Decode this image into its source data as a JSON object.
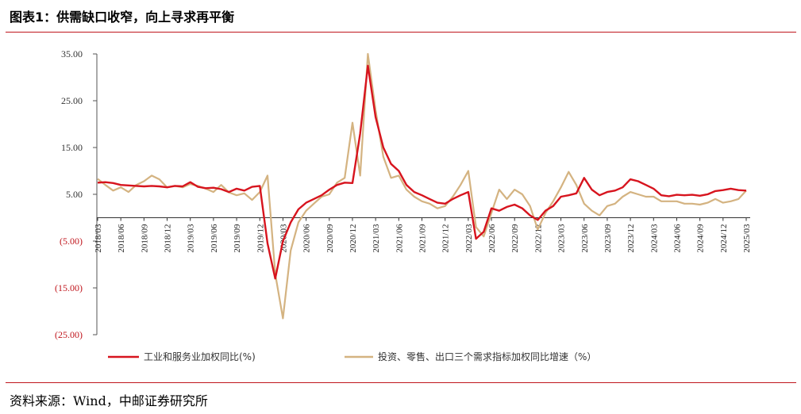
{
  "header": {
    "title": "图表1：供需缺口收窄，向上寻求再平衡"
  },
  "footer": {
    "source": "资料来源：Wind，中邮证券研究所"
  },
  "chart_data": {
    "type": "line",
    "title": "",
    "xlabel": "",
    "ylabel": "",
    "ylim": [
      -25,
      35
    ],
    "yticks": [
      35,
      25,
      15,
      5,
      -5,
      -15,
      -25
    ],
    "ytick_labels": [
      "35.00",
      "25.00",
      "15.00",
      "5.00",
      "(5.00)",
      "(15.00)",
      "(25.00)"
    ],
    "negative_label_color": "#c0161d",
    "grid": false,
    "legend_position": "bottom",
    "x_tick_labels": [
      "2018/03",
      "2018/06",
      "2018/09",
      "2018/12",
      "2019/03",
      "2019/06",
      "2019/09",
      "2019/12",
      "2020/03",
      "2020/06",
      "2020/09",
      "2020/12",
      "2021/03",
      "2021/06",
      "2021/09",
      "2021/12",
      "2022/03",
      "2022/06",
      "2022/09",
      "2022/12",
      "2023/03",
      "2023/06",
      "2023/09",
      "2023/12",
      "2024/03",
      "2024/06",
      "2024/09",
      "2024/12",
      "2025/03"
    ],
    "x": [
      "2018/03",
      "2018/04",
      "2018/05",
      "2018/06",
      "2018/07",
      "2018/08",
      "2018/09",
      "2018/10",
      "2018/11",
      "2018/12",
      "2019/01",
      "2019/02",
      "2019/03",
      "2019/04",
      "2019/05",
      "2019/06",
      "2019/07",
      "2019/08",
      "2019/09",
      "2019/10",
      "2019/11",
      "2019/12",
      "2020/01",
      "2020/02",
      "2020/03",
      "2020/04",
      "2020/05",
      "2020/06",
      "2020/07",
      "2020/08",
      "2020/09",
      "2020/10",
      "2020/11",
      "2020/12",
      "2021/01",
      "2021/02",
      "2021/03",
      "2021/04",
      "2021/05",
      "2021/06",
      "2021/07",
      "2021/08",
      "2021/09",
      "2021/10",
      "2021/11",
      "2021/12",
      "2022/01",
      "2022/02",
      "2022/03",
      "2022/04",
      "2022/05",
      "2022/06",
      "2022/07",
      "2022/08",
      "2022/09",
      "2022/10",
      "2022/11",
      "2022/12",
      "2023/01",
      "2023/02",
      "2023/03",
      "2023/04",
      "2023/05",
      "2023/06",
      "2023/07",
      "2023/08",
      "2023/09",
      "2023/10",
      "2023/11",
      "2023/12",
      "2024/01",
      "2024/02",
      "2024/03",
      "2024/04",
      "2024/05",
      "2024/06",
      "2024/07",
      "2024/08",
      "2024/09",
      "2024/10",
      "2024/11",
      "2024/12",
      "2025/01",
      "2025/02",
      "2025/03"
    ],
    "series": [
      {
        "name": "工业和服务业加权同比(%)",
        "color": "#d7141e",
        "values": [
          7.5,
          7.6,
          7.4,
          7.0,
          6.9,
          6.8,
          6.7,
          6.8,
          6.7,
          6.5,
          6.8,
          6.7,
          7.6,
          6.6,
          6.3,
          6.4,
          6.1,
          5.5,
          6.2,
          5.8,
          6.6,
          6.8,
          -5.5,
          -13.0,
          -5.0,
          -1.0,
          1.8,
          3.2,
          4.0,
          4.8,
          6.0,
          7.0,
          7.5,
          7.4,
          18.0,
          32.5,
          21.5,
          15.0,
          11.5,
          10.0,
          7.0,
          5.5,
          4.8,
          4.0,
          3.2,
          3.0,
          4.0,
          4.8,
          5.5,
          -4.5,
          -3.0,
          2.0,
          1.5,
          2.3,
          2.8,
          2.0,
          0.5,
          -0.5,
          1.5,
          2.5,
          4.5,
          4.8,
          5.2,
          8.5,
          6.0,
          4.8,
          5.5,
          5.8,
          6.5,
          8.2,
          7.8,
          7.0,
          6.2,
          4.8,
          4.6,
          4.9,
          4.8,
          4.9,
          4.7,
          5.0,
          5.7,
          5.9,
          6.2,
          5.9,
          5.8
        ]
      },
      {
        "name": "投资、零售、出口三个需求指标加权同比增速（%）",
        "color": "#d4b381",
        "values": [
          8.3,
          7.0,
          5.8,
          6.5,
          5.5,
          7.0,
          7.8,
          9.0,
          8.2,
          6.5,
          6.8,
          6.5,
          7.2,
          6.8,
          6.2,
          5.5,
          7.0,
          5.4,
          4.8,
          5.2,
          3.8,
          5.5,
          9.0,
          -12.0,
          -21.5,
          -7.0,
          -1.0,
          1.5,
          3.0,
          4.5,
          5.0,
          7.5,
          8.5,
          20.3,
          9.0,
          35.0,
          23.0,
          13.0,
          8.5,
          9.0,
          6.0,
          4.5,
          3.5,
          3.0,
          2.0,
          2.5,
          4.5,
          7.0,
          10.0,
          -2.0,
          -4.0,
          1.0,
          6.0,
          4.0,
          6.0,
          5.0,
          2.5,
          -2.5,
          1.0,
          3.5,
          6.5,
          9.8,
          7.0,
          3.0,
          1.5,
          0.5,
          2.5,
          3.0,
          4.5,
          5.5,
          5.0,
          4.5,
          4.5,
          3.5,
          3.5,
          3.5,
          3.0,
          3.0,
          2.8,
          3.2,
          4.0,
          3.2,
          3.5,
          4.0,
          5.8
        ]
      }
    ]
  }
}
